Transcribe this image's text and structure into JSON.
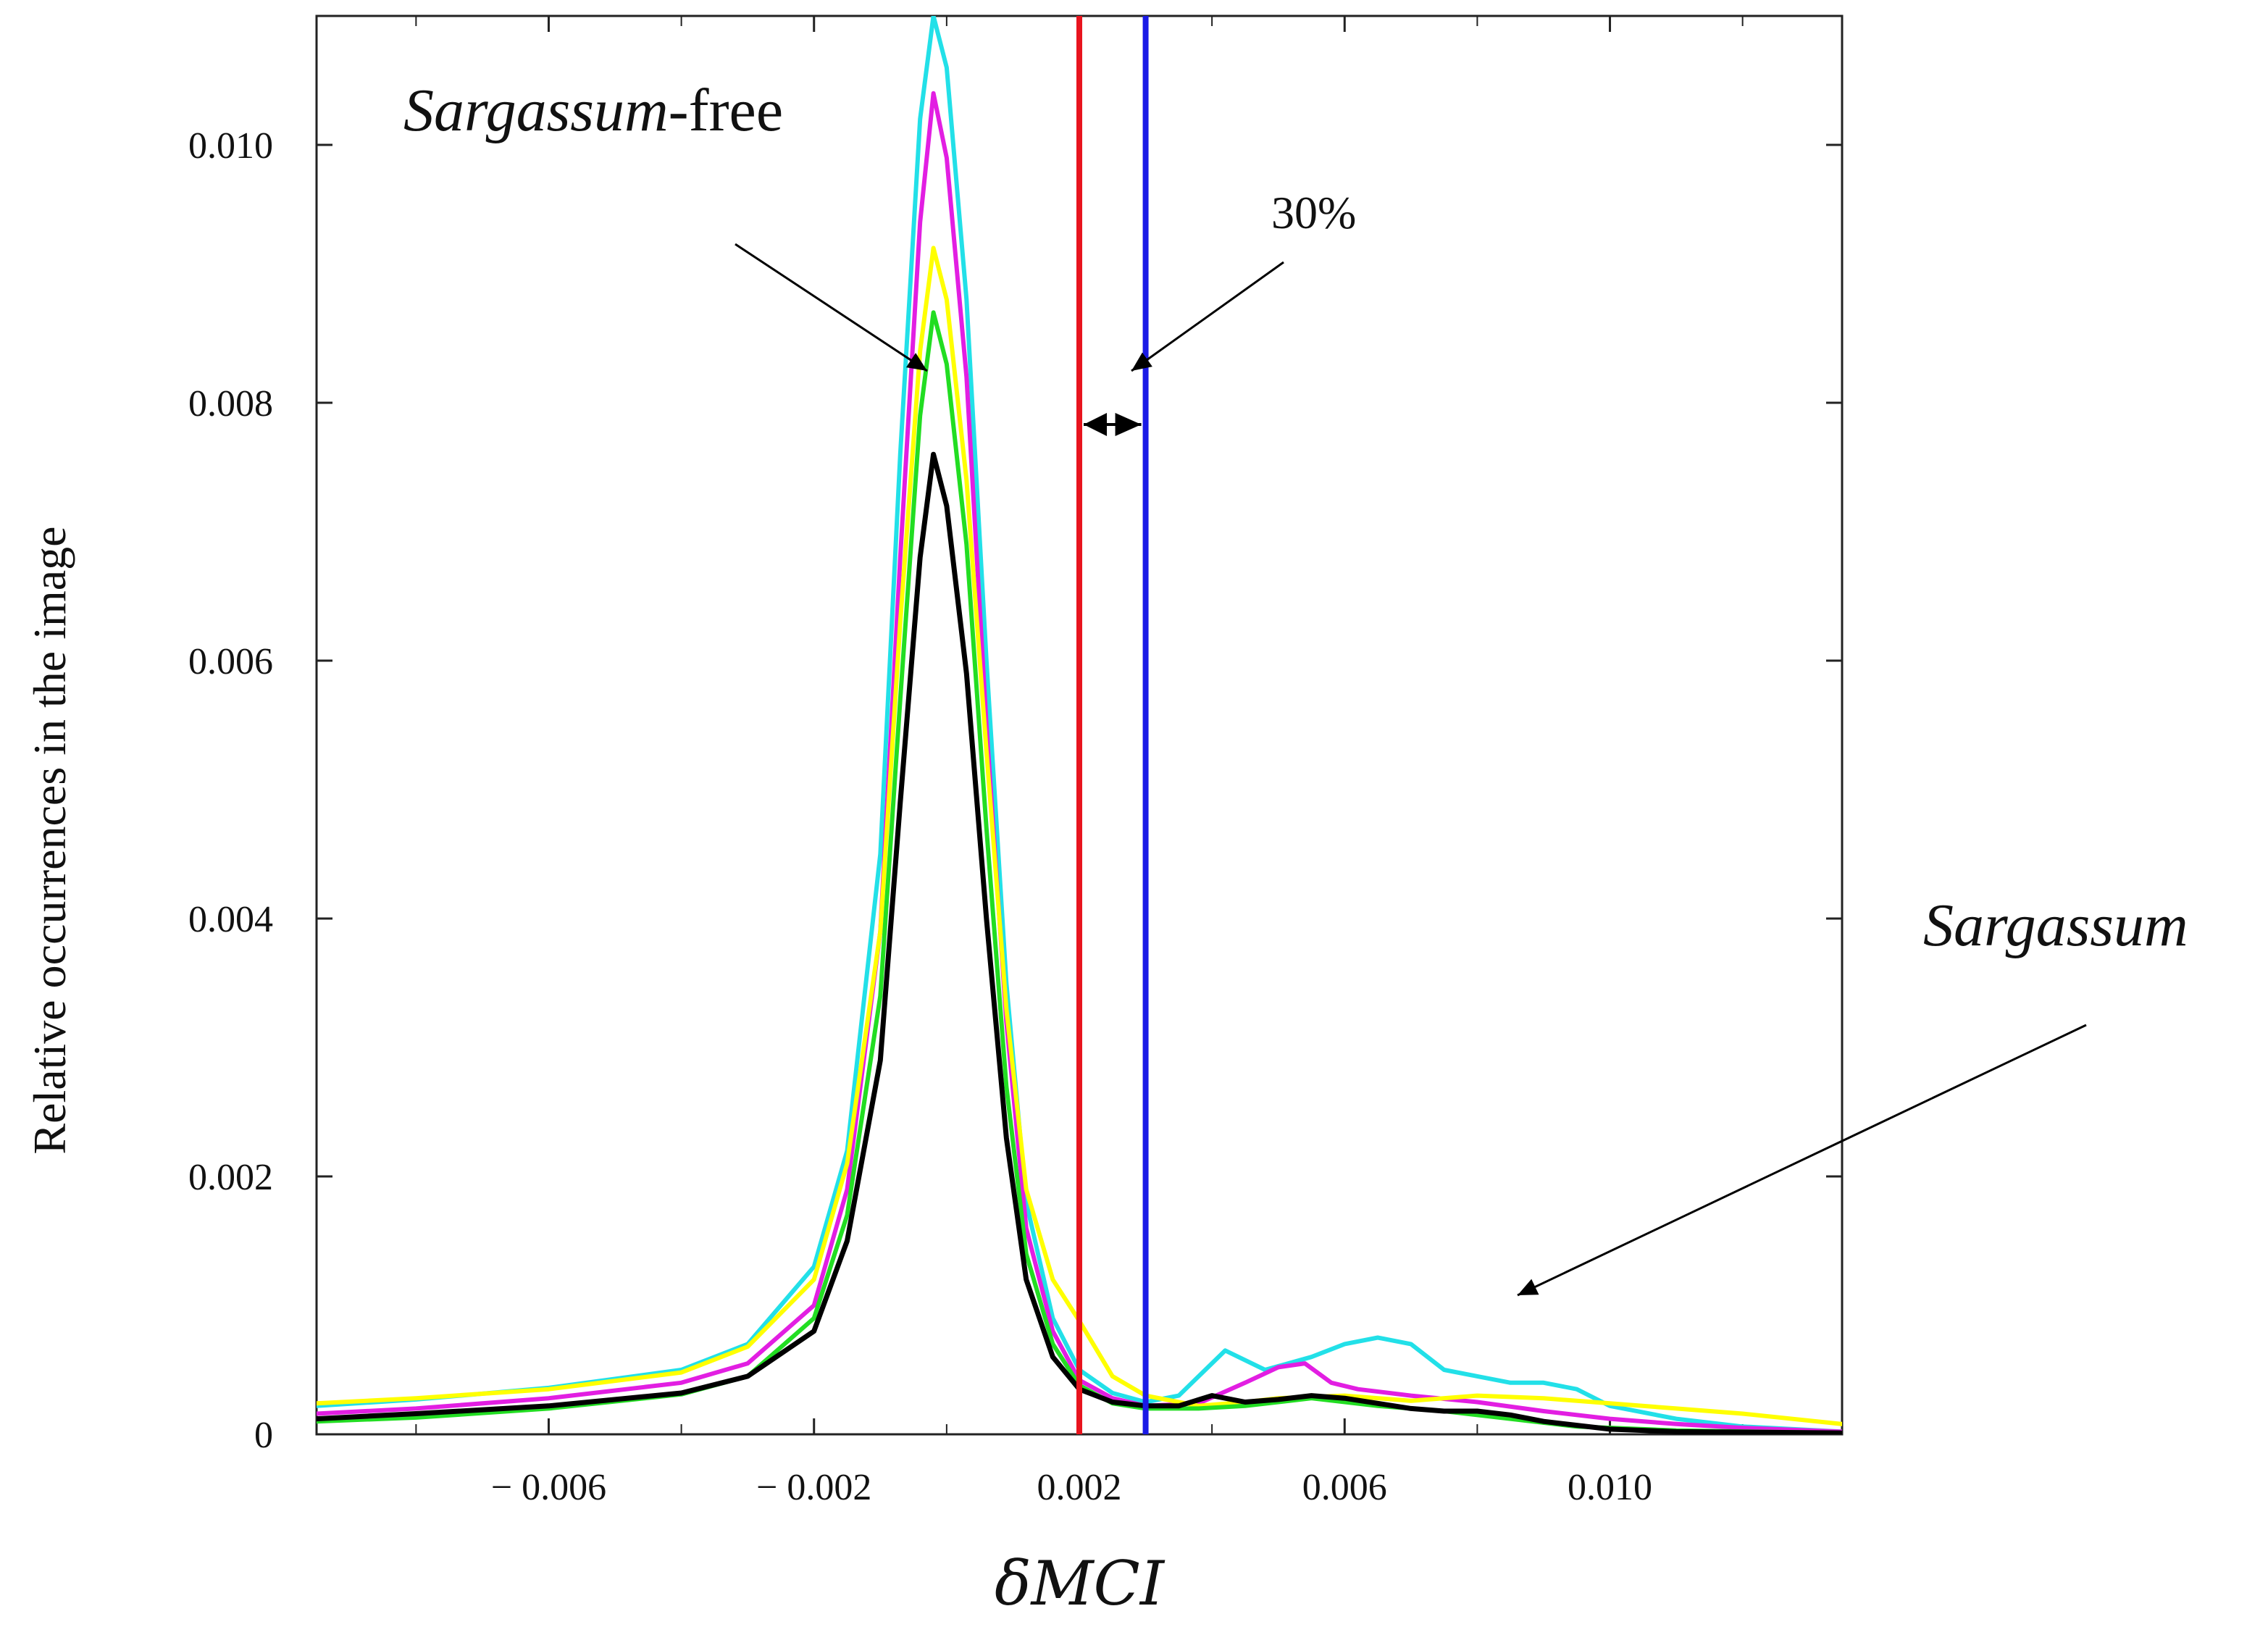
{
  "chart_data": {
    "type": "line",
    "title": "",
    "xlabel": "δMCI",
    "ylabel": "Relative occurrences in the image",
    "xlim": [
      -0.0095,
      0.0135
    ],
    "ylim": [
      0,
      0.011
    ],
    "x_ticks": [
      -0.006,
      -0.002,
      0.002,
      0.006,
      0.01
    ],
    "x_tick_labels": [
      "− 0.006",
      "− 0.002",
      "0.002",
      "0.006",
      "0.010"
    ],
    "y_ticks": [
      0,
      0.002,
      0.004,
      0.006,
      0.008,
      0.01
    ],
    "y_tick_labels": [
      "0",
      "0.002",
      "0.004",
      "0.006",
      "0.008",
      "0.010"
    ],
    "grid": false,
    "series": [
      {
        "name": "cyan",
        "color": "#22e0e8",
        "points": [
          [
            -0.0095,
            0.00022
          ],
          [
            -0.008,
            0.00027
          ],
          [
            -0.006,
            0.00036
          ],
          [
            -0.004,
            0.0005
          ],
          [
            -0.003,
            0.0007
          ],
          [
            -0.002,
            0.0013
          ],
          [
            -0.0015,
            0.0022
          ],
          [
            -0.001,
            0.0045
          ],
          [
            -0.0007,
            0.0076
          ],
          [
            -0.0004,
            0.0102
          ],
          [
            -0.0002,
            0.011
          ],
          [
            0.0,
            0.0106
          ],
          [
            0.0003,
            0.0088
          ],
          [
            0.0006,
            0.006
          ],
          [
            0.0009,
            0.0035
          ],
          [
            0.0012,
            0.0018
          ],
          [
            0.0016,
            0.0009
          ],
          [
            0.002,
            0.0005
          ],
          [
            0.0025,
            0.00032
          ],
          [
            0.003,
            0.00025
          ],
          [
            0.0035,
            0.0003
          ],
          [
            0.0042,
            0.00065
          ],
          [
            0.0048,
            0.0005
          ],
          [
            0.0055,
            0.0006
          ],
          [
            0.006,
            0.0007
          ],
          [
            0.0065,
            0.00075
          ],
          [
            0.007,
            0.0007
          ],
          [
            0.0075,
            0.0005
          ],
          [
            0.008,
            0.00045
          ],
          [
            0.0085,
            0.0004
          ],
          [
            0.009,
            0.0004
          ],
          [
            0.0095,
            0.00035
          ],
          [
            0.01,
            0.00022
          ],
          [
            0.011,
            0.00012
          ],
          [
            0.012,
            6e-05
          ],
          [
            0.0135,
            2e-05
          ]
        ]
      },
      {
        "name": "magenta",
        "color": "#e21ee2",
        "points": [
          [
            -0.0095,
            0.00016
          ],
          [
            -0.008,
            0.0002
          ],
          [
            -0.006,
            0.00028
          ],
          [
            -0.004,
            0.0004
          ],
          [
            -0.003,
            0.00055
          ],
          [
            -0.002,
            0.001
          ],
          [
            -0.0015,
            0.0019
          ],
          [
            -0.001,
            0.0039
          ],
          [
            -0.0007,
            0.0068
          ],
          [
            -0.0004,
            0.0094
          ],
          [
            -0.0002,
            0.0104
          ],
          [
            0.0,
            0.0099
          ],
          [
            0.0003,
            0.0082
          ],
          [
            0.0006,
            0.0055
          ],
          [
            0.0009,
            0.0032
          ],
          [
            0.0012,
            0.0016
          ],
          [
            0.0016,
            0.0008
          ],
          [
            0.002,
            0.00042
          ],
          [
            0.0025,
            0.00028
          ],
          [
            0.003,
            0.00022
          ],
          [
            0.0038,
            0.00024
          ],
          [
            0.0045,
            0.0004
          ],
          [
            0.005,
            0.00052
          ],
          [
            0.0054,
            0.00055
          ],
          [
            0.0058,
            0.0004
          ],
          [
            0.0062,
            0.00035
          ],
          [
            0.007,
            0.0003
          ],
          [
            0.008,
            0.00025
          ],
          [
            0.009,
            0.00018
          ],
          [
            0.01,
            0.00012
          ],
          [
            0.011,
            8e-05
          ],
          [
            0.012,
            5e-05
          ],
          [
            0.0135,
            2e-05
          ]
        ]
      },
      {
        "name": "yellow",
        "color": "#ffff00",
        "points": [
          [
            -0.0095,
            0.00024
          ],
          [
            -0.008,
            0.00028
          ],
          [
            -0.006,
            0.00035
          ],
          [
            -0.004,
            0.00048
          ],
          [
            -0.003,
            0.00068
          ],
          [
            -0.002,
            0.0012
          ],
          [
            -0.0015,
            0.0021
          ],
          [
            -0.001,
            0.0039
          ],
          [
            -0.0007,
            0.0063
          ],
          [
            -0.0004,
            0.0084
          ],
          [
            -0.0002,
            0.0092
          ],
          [
            0.0,
            0.0088
          ],
          [
            0.0003,
            0.0074
          ],
          [
            0.0006,
            0.0053
          ],
          [
            0.0009,
            0.0033
          ],
          [
            0.0012,
            0.0019
          ],
          [
            0.0016,
            0.0012
          ],
          [
            0.002,
            0.00088
          ],
          [
            0.0025,
            0.00045
          ],
          [
            0.003,
            0.0003
          ],
          [
            0.0038,
            0.00022
          ],
          [
            0.0045,
            0.00025
          ],
          [
            0.005,
            0.00028
          ],
          [
            0.006,
            0.0003
          ],
          [
            0.007,
            0.00026
          ],
          [
            0.008,
            0.0003
          ],
          [
            0.009,
            0.00028
          ],
          [
            0.01,
            0.00024
          ],
          [
            0.011,
            0.0002
          ],
          [
            0.012,
            0.00016
          ],
          [
            0.0135,
            8e-05
          ]
        ]
      },
      {
        "name": "green",
        "color": "#22dd22",
        "points": [
          [
            -0.0095,
            0.0001
          ],
          [
            -0.008,
            0.00013
          ],
          [
            -0.006,
            0.0002
          ],
          [
            -0.004,
            0.00031
          ],
          [
            -0.003,
            0.00045
          ],
          [
            -0.002,
            0.0009
          ],
          [
            -0.0015,
            0.0017
          ],
          [
            -0.001,
            0.0034
          ],
          [
            -0.0007,
            0.0057
          ],
          [
            -0.0004,
            0.0079
          ],
          [
            -0.0002,
            0.0087
          ],
          [
            0.0,
            0.0083
          ],
          [
            0.0003,
            0.0069
          ],
          [
            0.0006,
            0.0047
          ],
          [
            0.0009,
            0.0027
          ],
          [
            0.0012,
            0.0014
          ],
          [
            0.0016,
            0.0007
          ],
          [
            0.002,
            0.00038
          ],
          [
            0.0025,
            0.00024
          ],
          [
            0.003,
            0.0002
          ],
          [
            0.0038,
            0.0002
          ],
          [
            0.0045,
            0.00022
          ],
          [
            0.0055,
            0.00028
          ],
          [
            0.0065,
            0.00022
          ],
          [
            0.0075,
            0.00018
          ],
          [
            0.0085,
            0.00012
          ],
          [
            0.0095,
            6e-05
          ],
          [
            0.011,
            3e-05
          ],
          [
            0.0135,
            1e-05
          ]
        ]
      },
      {
        "name": "black",
        "color": "#000000",
        "points": [
          [
            -0.0095,
            0.00012
          ],
          [
            -0.008,
            0.00016
          ],
          [
            -0.006,
            0.00022
          ],
          [
            -0.004,
            0.00032
          ],
          [
            -0.003,
            0.00045
          ],
          [
            -0.002,
            0.0008
          ],
          [
            -0.0015,
            0.0015
          ],
          [
            -0.001,
            0.0029
          ],
          [
            -0.0007,
            0.0049
          ],
          [
            -0.0004,
            0.0068
          ],
          [
            -0.0002,
            0.0076
          ],
          [
            0.0,
            0.0072
          ],
          [
            0.0003,
            0.0059
          ],
          [
            0.0006,
            0.004
          ],
          [
            0.0009,
            0.0023
          ],
          [
            0.0012,
            0.0012
          ],
          [
            0.0016,
            0.0006
          ],
          [
            0.002,
            0.00035
          ],
          [
            0.0025,
            0.00025
          ],
          [
            0.003,
            0.00022
          ],
          [
            0.0035,
            0.00022
          ],
          [
            0.004,
            0.0003
          ],
          [
            0.0045,
            0.00025
          ],
          [
            0.005,
            0.00027
          ],
          [
            0.0055,
            0.0003
          ],
          [
            0.006,
            0.00028
          ],
          [
            0.0065,
            0.00024
          ],
          [
            0.007,
            0.0002
          ],
          [
            0.0075,
            0.00018
          ],
          [
            0.008,
            0.00018
          ],
          [
            0.0085,
            0.00015
          ],
          [
            0.009,
            0.0001
          ],
          [
            0.01,
            4e-05
          ],
          [
            0.011,
            2e-05
          ],
          [
            0.0135,
            1e-05
          ]
        ]
      }
    ],
    "thresholds": [
      {
        "name": "red-threshold",
        "x": 0.002,
        "color": "#e8141e"
      },
      {
        "name": "blue-threshold",
        "x": 0.003,
        "color": "#1a1ae6"
      }
    ],
    "annotations": {
      "sargassum_free_italic": "Sargassum",
      "sargassum_free_suffix": "-free",
      "percent": "30%",
      "sargassum": "Sargassum"
    }
  }
}
